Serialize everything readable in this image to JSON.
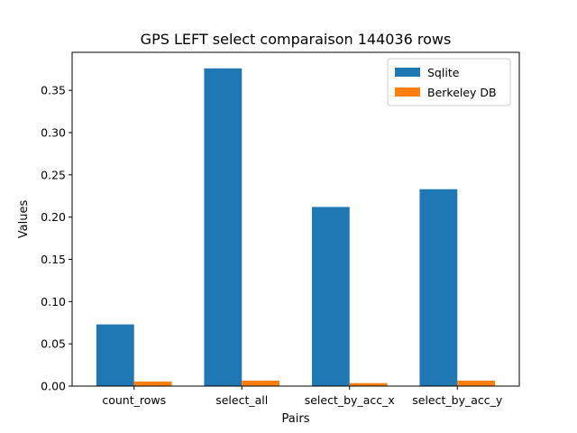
{
  "chart_data": {
    "type": "bar",
    "title": "GPS LEFT select comparaison 144036 rows",
    "xlabel": "Pairs",
    "ylabel": "Values",
    "categories": [
      "count_rows",
      "select_all",
      "select_by_acc_x",
      "select_by_acc_y"
    ],
    "series": [
      {
        "name": "Sqlite",
        "color": "#1f77b4",
        "values": [
          0.073,
          0.376,
          0.212,
          0.233
        ]
      },
      {
        "name": "Berkeley DB",
        "color": "#ff7f0e",
        "values": [
          0.0055,
          0.0065,
          0.0035,
          0.0065
        ]
      }
    ],
    "ylim": [
      0,
      0.395
    ],
    "yticks": [
      "0.00",
      "0.05",
      "0.10",
      "0.15",
      "0.20",
      "0.25",
      "0.30",
      "0.35"
    ],
    "grid": false,
    "legend_position": "top-right"
  }
}
